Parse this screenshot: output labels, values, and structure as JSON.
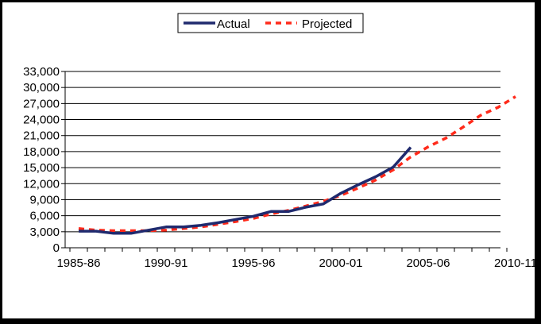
{
  "chart_data": {
    "type": "line",
    "x": [
      "1985-86",
      "1986-87",
      "1987-88",
      "1988-89",
      "1989-90",
      "1990-91",
      "1991-92",
      "1992-93",
      "1993-94",
      "1994-95",
      "1995-96",
      "1996-97",
      "1997-98",
      "1998-99",
      "1999-00",
      "2000-01",
      "2001-02",
      "2002-03",
      "2003-04",
      "2004-05",
      "2005-06",
      "2006-07",
      "2007-08",
      "2008-09",
      "2009-10",
      "2010-11"
    ],
    "x_tick_labels": [
      "1985-86",
      "1990-91",
      "1995-96",
      "2000-01",
      "2005-06",
      "2010-11"
    ],
    "y_tick_labels": [
      "0",
      "3,000",
      "6,000",
      "9,000",
      "12,000",
      "15,000",
      "18,000",
      "21,000",
      "24,000",
      "27,000",
      "30,000",
      "33,000"
    ],
    "ylim": [
      0,
      33000
    ],
    "grid": true,
    "legend_position": "top",
    "series": [
      {
        "name": "Actual",
        "color": "#1f2a6e",
        "style": "solid",
        "values": [
          3100,
          3100,
          2700,
          2700,
          3300,
          3900,
          3900,
          4200,
          4700,
          5300,
          5900,
          6800,
          6800,
          7600,
          8200,
          10200,
          11800,
          13300,
          15100,
          18800,
          null,
          null,
          null,
          null,
          null,
          null
        ]
      },
      {
        "name": "Projected",
        "color": "#ff2a1a",
        "style": "dashed",
        "values": [
          3600,
          3300,
          3200,
          3200,
          3200,
          3300,
          3600,
          3900,
          4400,
          4900,
          5500,
          6300,
          7000,
          7800,
          8700,
          9800,
          11200,
          12700,
          14600,
          17000,
          18900,
          20500,
          22600,
          24800,
          26300,
          28300
        ]
      }
    ]
  }
}
